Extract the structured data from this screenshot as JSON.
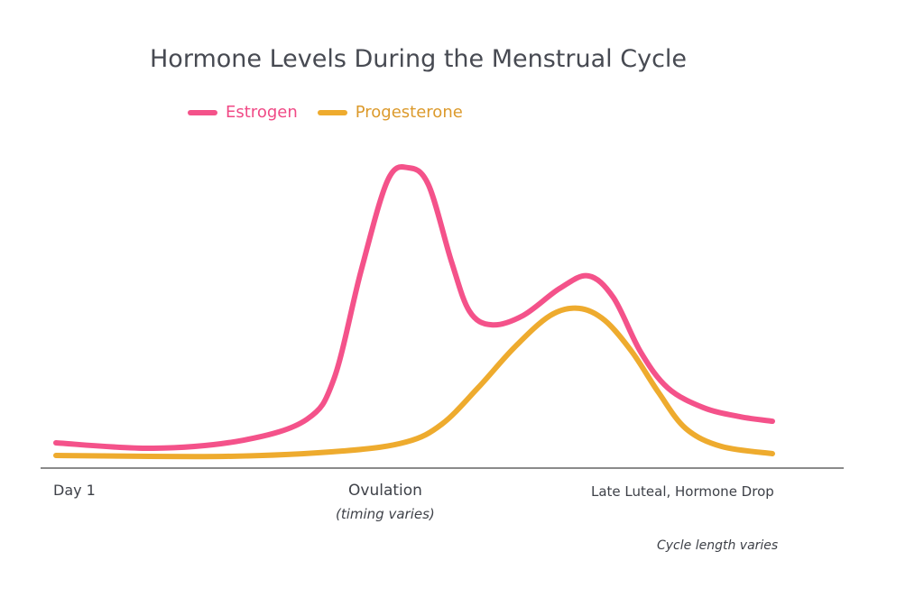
{
  "chart_data": {
    "type": "line",
    "title": "Hormone Levels During the Menstrual Cycle",
    "legend_position": "top-left",
    "grid": false,
    "xlim": [
      0,
      100
    ],
    "ylim": [
      0,
      100
    ],
    "x_tick_labels": [
      {
        "x": 0,
        "label": "Day 1",
        "note": ""
      },
      {
        "x": 47,
        "label": "Ovulation",
        "note": "(timing varies)"
      },
      {
        "x": 92,
        "label": "Late Luteal, Hormone Drop",
        "note": ""
      }
    ],
    "annotation": "Cycle length varies",
    "series": [
      {
        "name": "Estrogen",
        "color": "#f4528a",
        "x": [
          0,
          13.6,
          26.2,
          35.0,
          38.8,
          42.6,
          46.3,
          49.2,
          52.0,
          55.2,
          57.7,
          60.8,
          65.2,
          70.3,
          74.3,
          77.8,
          81.6,
          85.4,
          90.4,
          95.5,
          100
        ],
        "y": [
          8.1,
          6.3,
          9.0,
          15.9,
          29.4,
          65.5,
          95.5,
          99.7,
          94.0,
          68.5,
          52.0,
          47.4,
          50.5,
          59.5,
          63.7,
          56.5,
          38.4,
          26.4,
          19.8,
          16.8,
          15.3
        ]
      },
      {
        "name": "Progesterone",
        "color": "#eeab2e",
        "x": [
          0,
          23.7,
          40.1,
          48.9,
          53.9,
          58.9,
          64.0,
          69.0,
          73.0,
          76.6,
          80.4,
          84.1,
          87.9,
          92.9,
          100
        ],
        "y": [
          3.9,
          3.6,
          5.4,
          8.4,
          14.4,
          26.4,
          39.9,
          50.5,
          52.9,
          48.9,
          38.4,
          24.9,
          12.9,
          6.9,
          4.5
        ]
      }
    ],
    "axis_color": "#8a8a8a",
    "legend_text_colors": {
      "Estrogen": "#f04a86",
      "Progesterone": "#dc9a2c"
    }
  }
}
